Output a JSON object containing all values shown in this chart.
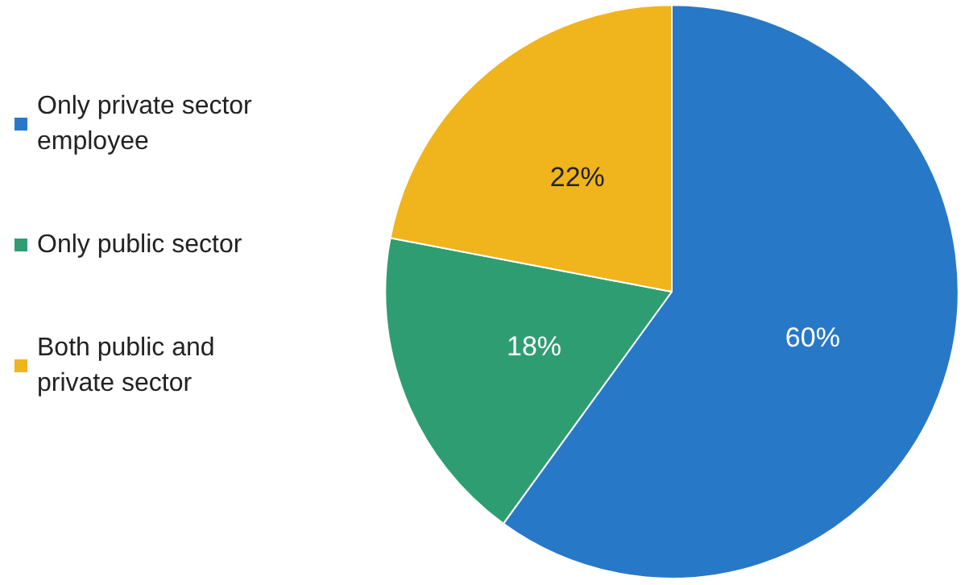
{
  "chart_data": {
    "type": "pie",
    "categories": [
      "Only private sector employee",
      "Only public sector",
      "Both public and private sector"
    ],
    "values": [
      60,
      18,
      22
    ],
    "colors": [
      "#2878c8",
      "#2e9e72",
      "#f0b41c"
    ],
    "value_labels": [
      "60%",
      "18%",
      "22%"
    ],
    "legend": "left"
  }
}
